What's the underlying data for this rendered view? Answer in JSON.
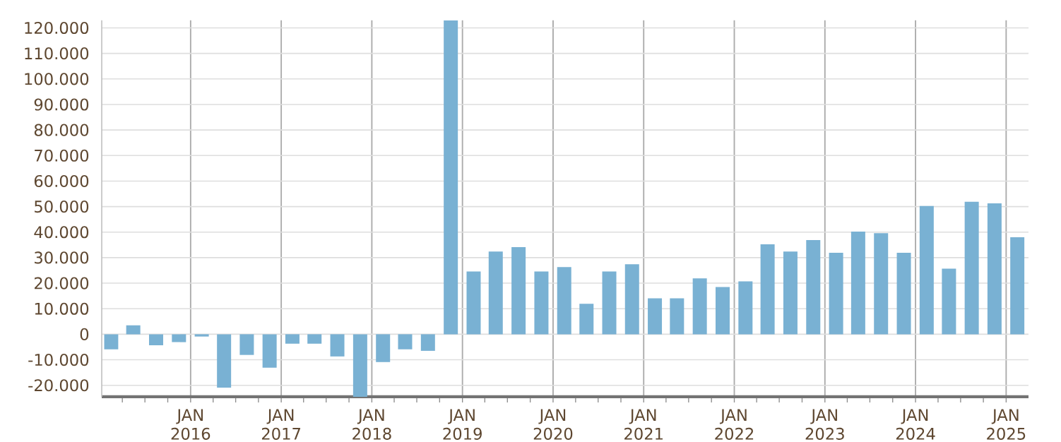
{
  "chart_data": {
    "type": "bar",
    "color": "#79b1d3",
    "grid": true,
    "x": [
      "2015-02-15",
      "2015-05-15",
      "2015-08-15",
      "2015-11-15",
      "2016-02-15",
      "2016-05-15",
      "2016-08-15",
      "2016-11-15",
      "2017-02-15",
      "2017-05-15",
      "2017-08-15",
      "2017-11-15",
      "2018-02-15",
      "2018-05-15",
      "2018-08-15",
      "2018-11-15",
      "2019-02-15",
      "2019-05-15",
      "2019-08-15",
      "2019-11-15",
      "2020-02-15",
      "2020-05-15",
      "2020-08-15",
      "2020-11-15",
      "2021-02-15",
      "2021-05-15",
      "2021-08-15",
      "2021-11-15",
      "2022-02-15",
      "2022-05-15",
      "2022-08-15",
      "2022-11-15",
      "2023-02-15",
      "2023-05-15",
      "2023-08-15",
      "2023-11-15",
      "2024-02-15",
      "2024-05-15",
      "2024-08-15",
      "2024-11-15",
      "2025-02-15"
    ],
    "values": [
      -5900,
      3500,
      -4300,
      -3100,
      -900,
      -20900,
      -8100,
      -13100,
      -3700,
      -3700,
      -8700,
      -24500,
      -10900,
      -5900,
      -6500,
      123000,
      24600,
      32400,
      34100,
      24600,
      26300,
      11900,
      24600,
      27400,
      14100,
      14100,
      21900,
      18500,
      20700,
      35200,
      32400,
      36900,
      31900,
      40200,
      39600,
      31900,
      50200,
      25700,
      51900,
      51300,
      38000
    ],
    "xlim": [
      "2015-01-08",
      "2025-04-01"
    ],
    "ylim": [
      -24500,
      123000
    ],
    "xticks": [
      {
        "value": "2015-04-01",
        "label": null
      },
      {
        "value": "2015-07-01",
        "label": null
      },
      {
        "value": "2015-10-01",
        "label": null
      },
      {
        "value": "2016-01-01",
        "label": "JAN 2016"
      },
      {
        "value": "2016-04-01",
        "label": null
      },
      {
        "value": "2016-07-01",
        "label": null
      },
      {
        "value": "2016-10-01",
        "label": null
      },
      {
        "value": "2017-01-01",
        "label": "JAN 2017"
      },
      {
        "value": "2017-04-01",
        "label": null
      },
      {
        "value": "2017-07-01",
        "label": null
      },
      {
        "value": "2017-10-01",
        "label": null
      },
      {
        "value": "2018-01-01",
        "label": "JAN 2018"
      },
      {
        "value": "2018-04-01",
        "label": null
      },
      {
        "value": "2018-07-01",
        "label": null
      },
      {
        "value": "2018-10-01",
        "label": null
      },
      {
        "value": "2019-01-01",
        "label": "JAN 2019"
      },
      {
        "value": "2019-04-01",
        "label": null
      },
      {
        "value": "2019-07-01",
        "label": null
      },
      {
        "value": "2019-10-01",
        "label": null
      },
      {
        "value": "2020-01-01",
        "label": "JAN 2020"
      },
      {
        "value": "2020-04-01",
        "label": null
      },
      {
        "value": "2020-07-01",
        "label": null
      },
      {
        "value": "2020-10-01",
        "label": null
      },
      {
        "value": "2021-01-01",
        "label": "JAN 2021"
      },
      {
        "value": "2021-04-01",
        "label": null
      },
      {
        "value": "2021-07-01",
        "label": null
      },
      {
        "value": "2021-10-01",
        "label": null
      },
      {
        "value": "2022-01-01",
        "label": "JAN 2022"
      },
      {
        "value": "2022-04-01",
        "label": null
      },
      {
        "value": "2022-07-01",
        "label": null
      },
      {
        "value": "2022-10-01",
        "label": null
      },
      {
        "value": "2023-01-01",
        "label": "JAN 2023"
      },
      {
        "value": "2023-04-01",
        "label": null
      },
      {
        "value": "2023-07-01",
        "label": null
      },
      {
        "value": "2023-10-01",
        "label": null
      },
      {
        "value": "2024-01-01",
        "label": "JAN 2024"
      },
      {
        "value": "2024-04-01",
        "label": null
      },
      {
        "value": "2024-07-01",
        "label": null
      },
      {
        "value": "2024-10-01",
        "label": null
      },
      {
        "value": "2025-01-01",
        "label": "JAN 2025"
      }
    ],
    "yticks": [
      {
        "value": -20000,
        "label": "-20.000"
      },
      {
        "value": -10000,
        "label": "-10.000"
      },
      {
        "value": 0,
        "label": "0"
      },
      {
        "value": 10000,
        "label": "10.000"
      },
      {
        "value": 20000,
        "label": "20.000"
      },
      {
        "value": 30000,
        "label": "30.000"
      },
      {
        "value": 40000,
        "label": "40.000"
      },
      {
        "value": 50000,
        "label": "50.000"
      },
      {
        "value": 60000,
        "label": "60.000"
      },
      {
        "value": 70000,
        "label": "70.000"
      },
      {
        "value": 80000,
        "label": "80.000"
      },
      {
        "value": 90000,
        "label": "90.000"
      },
      {
        "value": 100000,
        "label": "100.000"
      },
      {
        "value": 110000,
        "label": "110.000"
      },
      {
        "value": 120000,
        "label": "120.000"
      }
    ]
  }
}
